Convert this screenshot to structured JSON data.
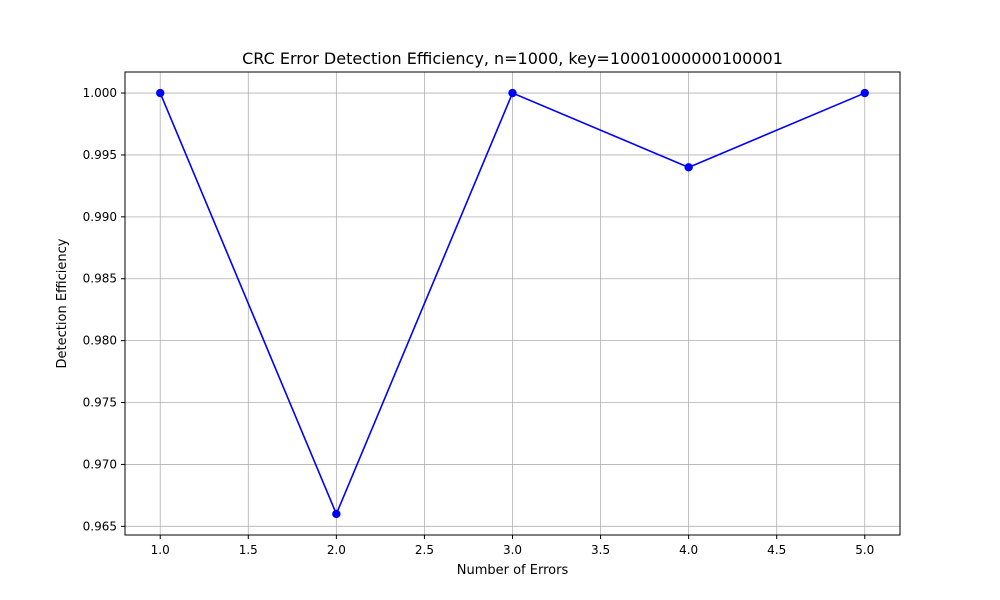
{
  "chart_data": {
    "type": "line",
    "title": "CRC Error Detection Efficiency, n=1000, key=10001000000100001",
    "xlabel": "Number of Errors",
    "ylabel": "Detection Efficiency",
    "x": [
      1,
      2,
      3,
      4,
      5
    ],
    "series": [
      {
        "values": [
          1.0,
          0.966,
          1.0,
          0.994,
          1.0
        ]
      }
    ],
    "xlim": [
      0.8,
      5.2
    ],
    "ylim": [
      0.9643,
      1.0017
    ],
    "xticks": [
      1.0,
      1.5,
      2.0,
      2.5,
      3.0,
      3.5,
      4.0,
      4.5,
      5.0
    ],
    "xtick_labels": [
      "1.0",
      "1.5",
      "2.0",
      "2.5",
      "3.0",
      "3.5",
      "4.0",
      "4.5",
      "5.0"
    ],
    "yticks": [
      0.965,
      0.97,
      0.975,
      0.98,
      0.985,
      0.99,
      0.995,
      1.0
    ],
    "ytick_labels": [
      "0.965",
      "0.970",
      "0.975",
      "0.980",
      "0.985",
      "0.990",
      "0.995",
      "1.000"
    ],
    "grid": true,
    "line_color": "#0000ff",
    "marker_color": "#0000ff",
    "grid_color": "#b0b0b0"
  }
}
